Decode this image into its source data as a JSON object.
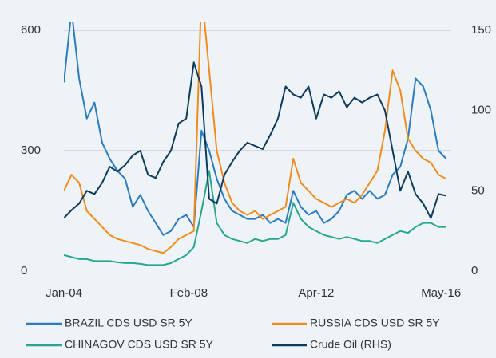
{
  "chart_data": {
    "type": "line",
    "x": [
      "2004-01",
      "2004-04",
      "2004-07",
      "2004-10",
      "2005-01",
      "2005-04",
      "2005-07",
      "2005-10",
      "2006-01",
      "2006-04",
      "2006-07",
      "2006-10",
      "2007-01",
      "2007-04",
      "2007-07",
      "2007-10",
      "2008-01",
      "2008-04",
      "2008-07",
      "2008-10",
      "2009-01",
      "2009-04",
      "2009-07",
      "2009-10",
      "2010-01",
      "2010-04",
      "2010-07",
      "2010-10",
      "2011-01",
      "2011-04",
      "2011-07",
      "2011-10",
      "2012-01",
      "2012-04",
      "2012-07",
      "2012-10",
      "2013-01",
      "2013-04",
      "2013-07",
      "2013-10",
      "2014-01",
      "2014-04",
      "2014-07",
      "2014-10",
      "2015-01",
      "2015-04",
      "2015-07",
      "2015-10",
      "2016-01",
      "2016-04",
      "2016-07"
    ],
    "xlim": [
      "2004-01",
      "2016-09"
    ],
    "xticks": [
      {
        "value": "2004-01",
        "label": "Jan-04"
      },
      {
        "value": "2008-02",
        "label": "Feb-08"
      },
      {
        "value": "2012-04",
        "label": "Apr-12"
      },
      {
        "value": "2016-05",
        "label": "May-16"
      }
    ],
    "ylim": [
      0,
      600
    ],
    "yticks": [
      0,
      300,
      600
    ],
    "y2lim": [
      0,
      150
    ],
    "y2ticks": [
      0,
      50,
      100,
      150
    ],
    "grid": true,
    "series": [
      {
        "name": "BRAZIL CDS USD SR 5Y",
        "color": "#2b7bbf",
        "values": [
          470,
          650,
          480,
          380,
          420,
          320,
          280,
          250,
          230,
          160,
          190,
          150,
          120,
          90,
          100,
          130,
          140,
          110,
          350,
          300,
          230,
          180,
          150,
          140,
          130,
          130,
          140,
          120,
          130,
          120,
          200,
          160,
          140,
          150,
          120,
          130,
          150,
          190,
          200,
          180,
          200,
          180,
          190,
          240,
          260,
          330,
          480,
          460,
          400,
          300,
          280
        ]
      },
      {
        "name": "RUSSIA CDS USD SR 5Y",
        "color": "#f08c1e",
        "values": [
          200,
          240,
          220,
          150,
          130,
          110,
          90,
          80,
          75,
          70,
          65,
          55,
          50,
          45,
          60,
          80,
          90,
          100,
          700,
          500,
          300,
          220,
          170,
          150,
          140,
          150,
          130,
          140,
          150,
          160,
          280,
          220,
          200,
          180,
          170,
          160,
          170,
          180,
          170,
          190,
          220,
          250,
          350,
          500,
          450,
          330,
          300,
          280,
          270,
          240,
          230
        ]
      },
      {
        "name": "CHINAGOV CDS USD SR 5Y",
        "color": "#2aa58f",
        "values": [
          40,
          35,
          30,
          30,
          25,
          25,
          25,
          22,
          20,
          20,
          18,
          15,
          15,
          15,
          20,
          30,
          40,
          60,
          150,
          250,
          120,
          90,
          80,
          75,
          70,
          80,
          75,
          80,
          80,
          90,
          170,
          130,
          110,
          100,
          90,
          85,
          80,
          85,
          80,
          75,
          75,
          70,
          80,
          90,
          100,
          95,
          110,
          120,
          120,
          110,
          110
        ]
      },
      {
        "name": "Crude Oil (RHS)",
        "color": "#0d3b5c",
        "axis": "y2",
        "values": [
          33,
          38,
          42,
          50,
          48,
          55,
          65,
          62,
          66,
          72,
          75,
          60,
          58,
          68,
          75,
          92,
          95,
          130,
          115,
          45,
          42,
          60,
          68,
          75,
          80,
          78,
          76,
          85,
          95,
          115,
          110,
          108,
          115,
          95,
          110,
          108,
          112,
          102,
          108,
          105,
          108,
          110,
          100,
          75,
          50,
          62,
          48,
          42,
          33,
          48,
          47
        ]
      }
    ]
  }
}
